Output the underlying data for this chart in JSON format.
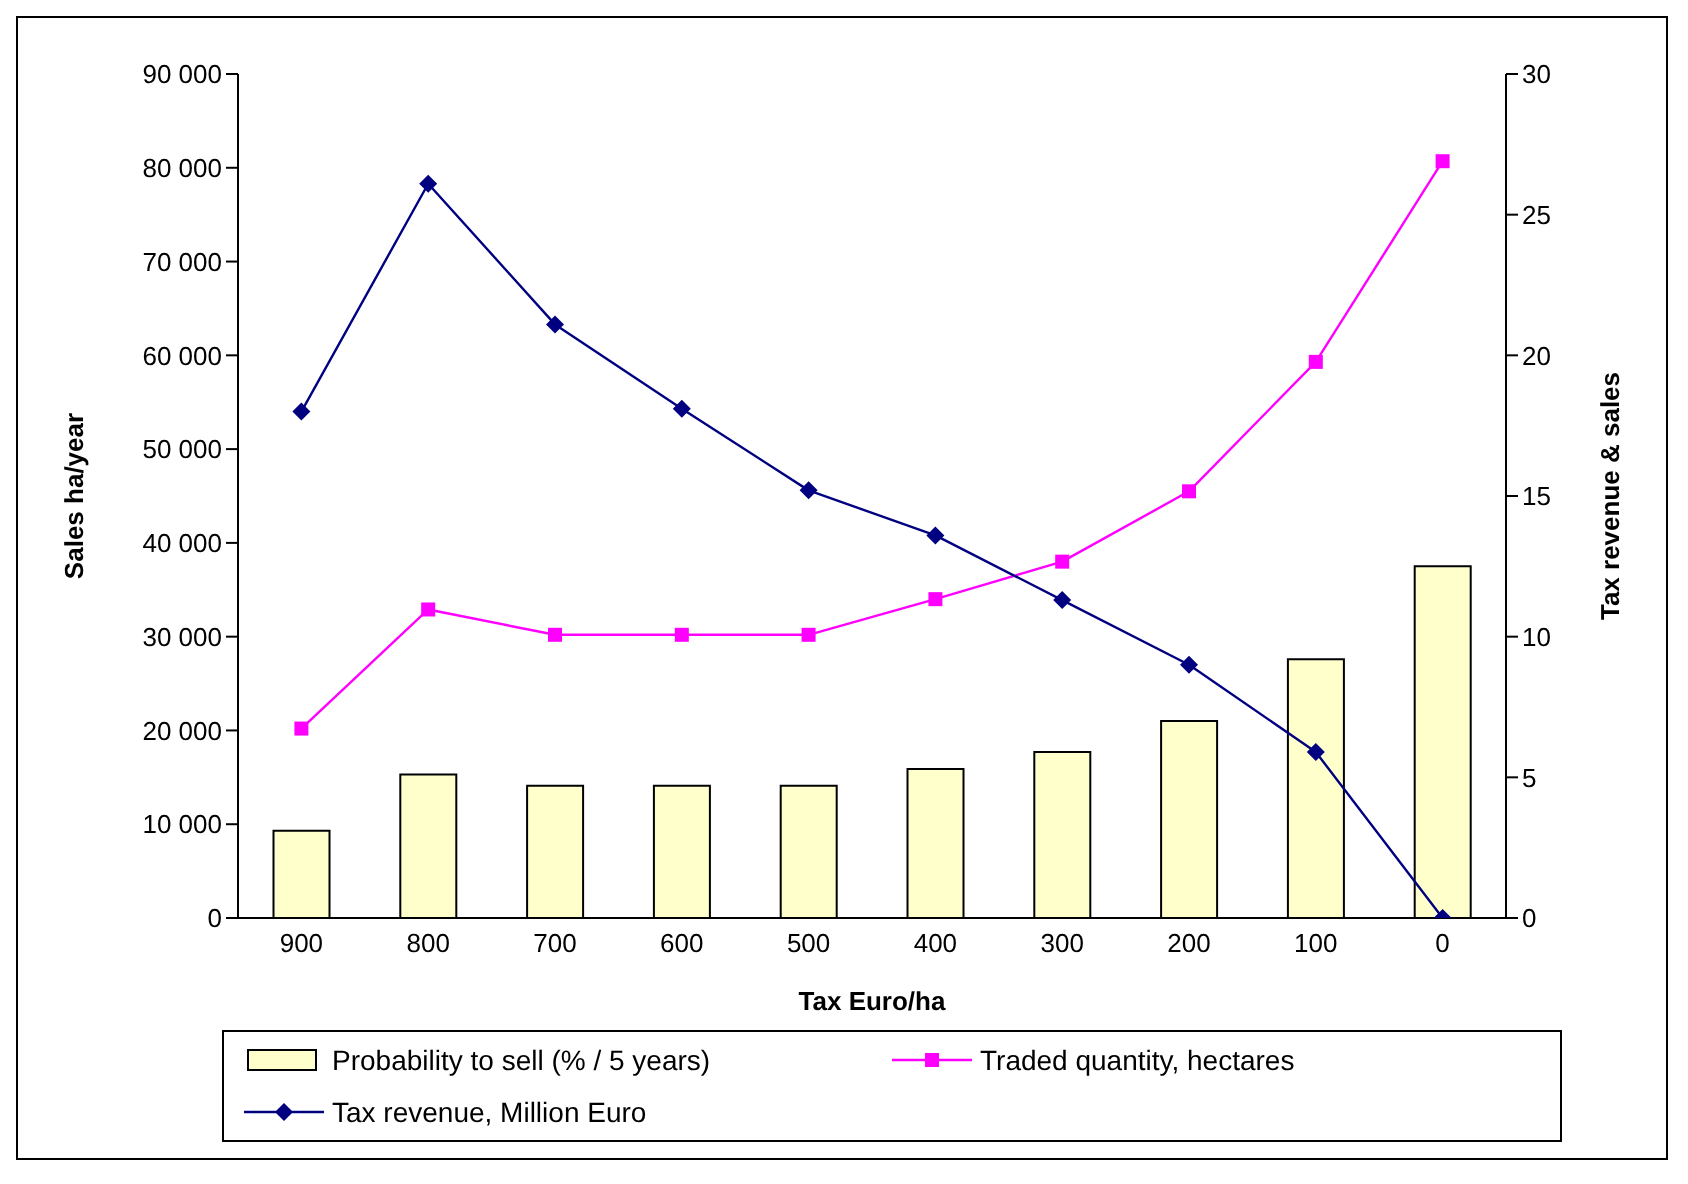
{
  "chart_data": {
    "type": "bar",
    "xlabel": "Tax Euro/ha",
    "ylabel": "Sales ha/year",
    "y2label": "Tax revenue & sales",
    "categories": [
      "900",
      "800",
      "700",
      "600",
      "500",
      "400",
      "300",
      "200",
      "100",
      "0"
    ],
    "series": [
      {
        "name": "Probability to sell (% / 5 years)",
        "axis": "y2",
        "color": "#ffffcc",
        "values": [
          3.1,
          5.1,
          4.7,
          4.7,
          4.7,
          5.3,
          5.9,
          7.0,
          9.2,
          12.5
        ]
      },
      {
        "name": "Traded quantity, hectares",
        "type": "line",
        "marker": "square",
        "color": "#ff00ff",
        "values": [
          20200,
          32900,
          30200,
          30200,
          30200,
          34000,
          38000,
          45500,
          59300,
          80700
        ]
      },
      {
        "name": "Tax revenue, Million Euro",
        "type": "line",
        "axis": "y2",
        "marker": "diamond",
        "color": "#000080",
        "values": [
          18.0,
          26.1,
          21.1,
          18.1,
          15.2,
          13.6,
          11.3,
          9.0,
          5.9,
          0
        ]
      }
    ],
    "ylim": [
      0,
      90000
    ],
    "yticks": [
      0,
      {
        "value": 10000,
        "label": "10 000"
      },
      {
        "value": 20000,
        "label": "20 000"
      },
      {
        "value": 30000,
        "label": "30 000"
      },
      {
        "value": 40000,
        "label": "40 000"
      },
      {
        "value": 50000,
        "label": "50 000"
      },
      {
        "value": 60000,
        "label": "60 000"
      },
      {
        "value": 70000,
        "label": "70 000"
      },
      {
        "value": 80000,
        "label": "80 000"
      },
      {
        "value": 90000,
        "label": "90 000"
      }
    ],
    "y2lim": [
      0,
      30
    ],
    "y2ticks": [
      0,
      5,
      10,
      15,
      20,
      25,
      30
    ],
    "legend": "bottom",
    "grid": false
  }
}
